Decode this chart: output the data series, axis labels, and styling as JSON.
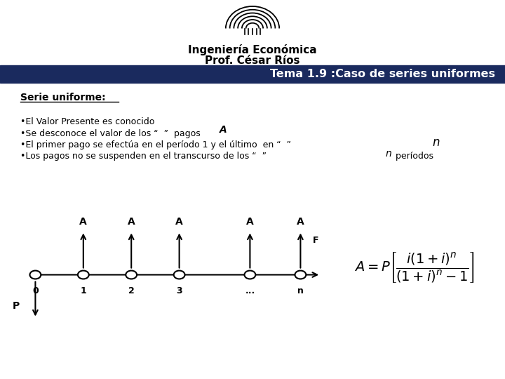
{
  "title_line1": "Ingeniería Económica",
  "title_line2": "Prof. César Ríos",
  "banner_text": "Tema 1.9 :Caso de series uniformes",
  "banner_color": "#1a2a5e",
  "banner_text_color": "#ffffff",
  "section_title": "Serie uniforme:",
  "timeline_labels": [
    "0",
    "1",
    "2",
    "3",
    "...",
    "n"
  ],
  "background_color": "#ffffff"
}
